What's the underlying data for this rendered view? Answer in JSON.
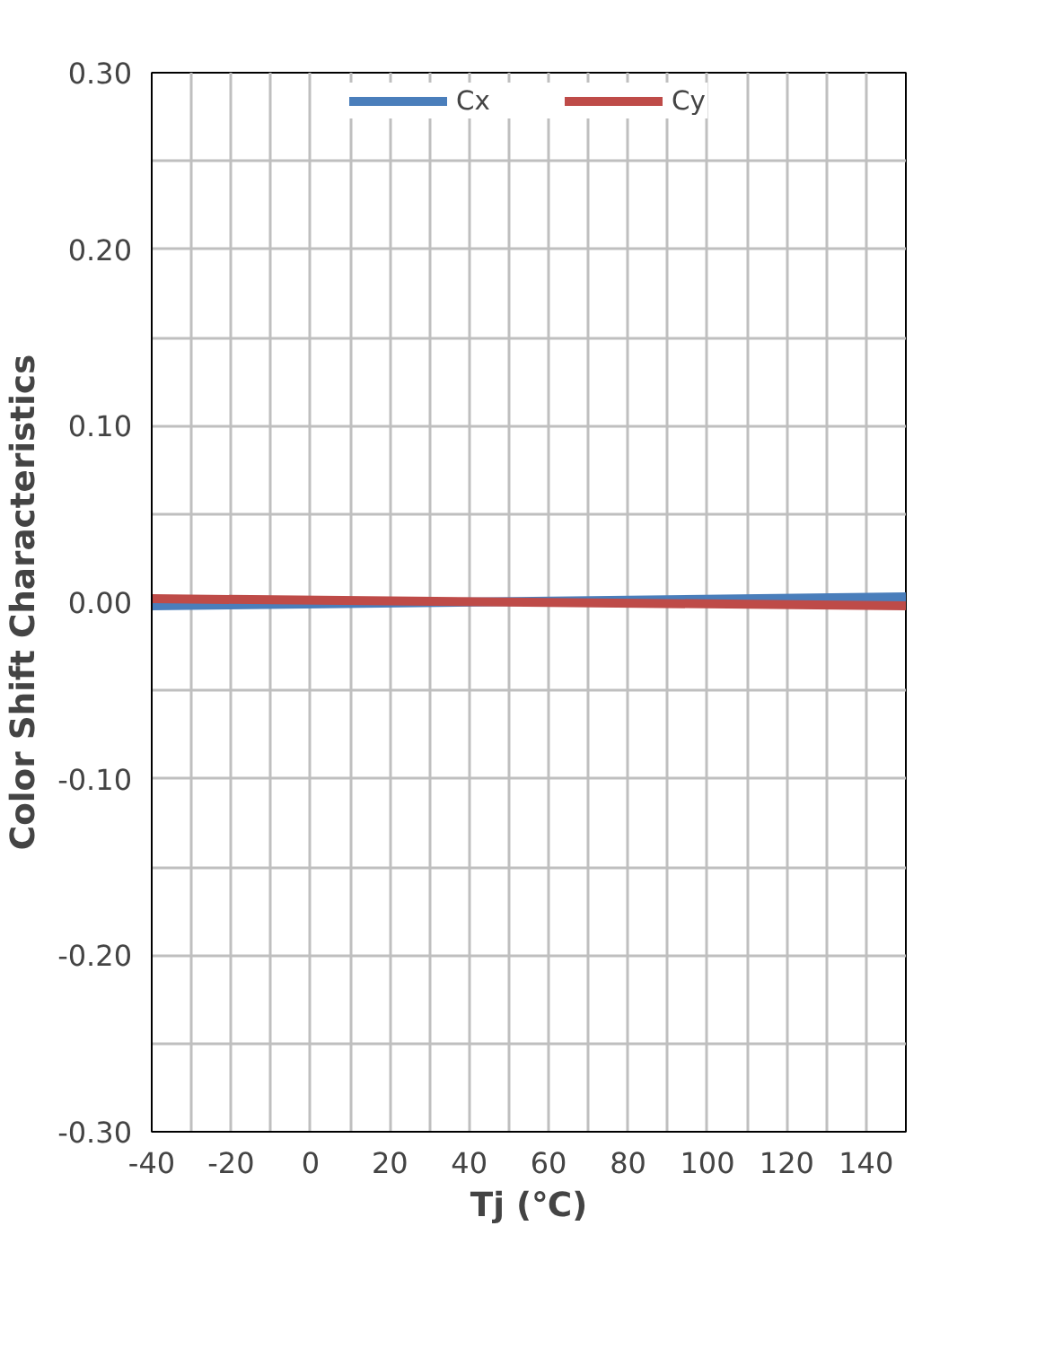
{
  "chart_data": {
    "type": "line",
    "xlabel": "Tj (℃)",
    "ylabel": "Color Shift Characteristics",
    "x": [
      -40,
      150
    ],
    "series": [
      {
        "name": "Cx",
        "color": "#4a7ebb",
        "values": [
          -0.002,
          0.003
        ]
      },
      {
        "name": "Cy",
        "color": "#be4b48",
        "values": [
          0.002,
          -0.002
        ]
      }
    ],
    "xlim": [
      -40,
      150
    ],
    "xticks": [
      -40,
      {
        "value": -30,
        "label": null
      },
      -20,
      {
        "value": -10,
        "label": null
      },
      0,
      {
        "value": 10,
        "label": null
      },
      20,
      {
        "value": 30,
        "label": null
      },
      40,
      {
        "value": 50,
        "label": null
      },
      60,
      {
        "value": 70,
        "label": null
      },
      80,
      {
        "value": 90,
        "label": null
      },
      100,
      {
        "value": 110,
        "label": null
      },
      120,
      {
        "value": 130,
        "label": null
      },
      140,
      {
        "value": 150,
        "label": null
      }
    ],
    "ylim": [
      -0.3,
      0.3
    ],
    "yticks": [
      {
        "value": -0.3,
        "label": "-0.30"
      },
      {
        "value": -0.25,
        "label": null
      },
      {
        "value": -0.2,
        "label": "-0.20"
      },
      {
        "value": -0.15,
        "label": null
      },
      {
        "value": -0.1,
        "label": "-0.10"
      },
      {
        "value": -0.05,
        "label": null
      },
      {
        "value": 0,
        "label": "0.00"
      },
      {
        "value": 0.05,
        "label": null
      },
      {
        "value": 0.1,
        "label": "0.10"
      },
      {
        "value": 0.15,
        "label": null
      },
      {
        "value": 0.2,
        "label": "0.20"
      },
      {
        "value": 0.25,
        "label": null
      },
      {
        "value": 0.3,
        "label": "0.30"
      }
    ],
    "grid": true,
    "legend": "top",
    "marker": "none",
    "line_style": "solid"
  }
}
